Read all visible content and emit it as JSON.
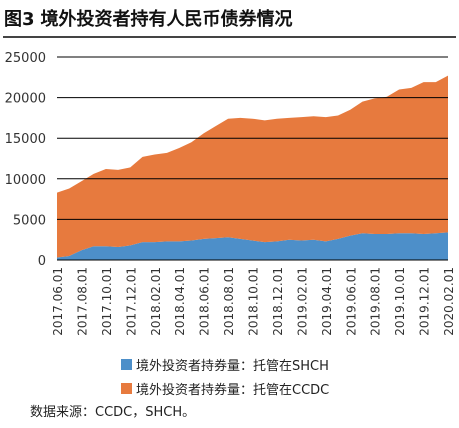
{
  "figure_number": "图3",
  "figure_title": "境外投资者持有人民币债券情况",
  "source_note": "数据来源：CCDC，SHCH。",
  "colors": {
    "shch": "#4d8fc9",
    "ccdc": "#e77a3e",
    "grid": "#000000",
    "axis_text": "#333333"
  },
  "chart_data": {
    "type": "area",
    "stacked": true,
    "title": "境外投资者持有人民币债券情况",
    "xlabel": "",
    "ylabel": "",
    "ylim": [
      0,
      25000
    ],
    "yticks": [
      0,
      5000,
      10000,
      15000,
      20000,
      25000
    ],
    "ytick_labels": [
      "0",
      "5000",
      "10000",
      "15000",
      "20000",
      "25000"
    ],
    "grid": "horizontal",
    "legend_position": "bottom",
    "x": [
      "2017.06",
      "2017.07",
      "2017.08",
      "2017.09",
      "2017.10",
      "2017.11",
      "2017.12",
      "2018.01",
      "2018.02",
      "2018.03",
      "2018.04",
      "2018.05",
      "2018.06",
      "2018.07",
      "2018.08",
      "2018.09",
      "2018.10",
      "2018.11",
      "2018.12",
      "2019.01",
      "2019.02",
      "2019.03",
      "2019.04",
      "2019.05",
      "2019.06",
      "2019.07",
      "2019.08",
      "2019.09",
      "2019.10",
      "2019.11",
      "2019.12",
      "2020.01",
      "2020.02"
    ],
    "x_tick_labels": [
      "2017.06.01",
      "2017.08.01",
      "2017.10.01",
      "2017.12.01",
      "2018.02.01",
      "2018.04.01",
      "2018.06.01",
      "2018.08.01",
      "2018.10.01",
      "2018.12.01",
      "2019.02.01",
      "2019.04.01",
      "2019.06.01",
      "2019.08.01",
      "2019.10.01",
      "2019.12.01",
      "2020.02.01"
    ],
    "series": [
      {
        "name": "境外投资者持券量：托管在SHCH",
        "color": "#4d8fc9",
        "values": [
          300,
          500,
          1200,
          1700,
          1700,
          1600,
          1800,
          2200,
          2200,
          2300,
          2300,
          2400,
          2600,
          2700,
          2800,
          2600,
          2400,
          2200,
          2300,
          2500,
          2400,
          2500,
          2300,
          2600,
          3000,
          3300,
          3200,
          3200,
          3300,
          3300,
          3200,
          3300,
          3400
        ]
      },
      {
        "name": "境外投资者持券量：托管在CCDC",
        "color": "#e77a3e",
        "values": [
          8000,
          8300,
          8500,
          8900,
          9500,
          9500,
          9600,
          10500,
          10800,
          10900,
          11500,
          12100,
          13000,
          13800,
          14600,
          14900,
          15000,
          15000,
          15100,
          15000,
          15200,
          15200,
          15300,
          15200,
          15500,
          16200,
          16700,
          16900,
          17700,
          17900,
          18700,
          18600,
          19300
        ]
      }
    ]
  }
}
